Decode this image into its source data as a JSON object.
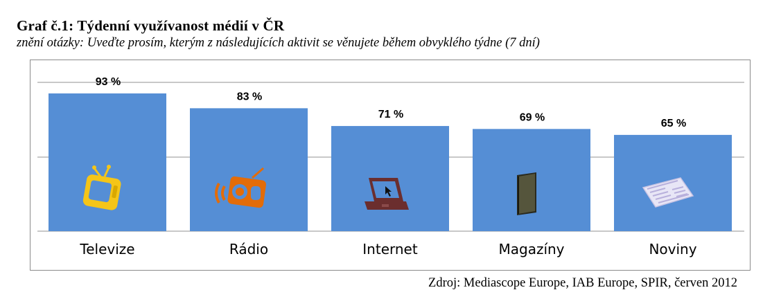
{
  "header": {
    "title": "Graf č.1: Týdenní využívanost médií v ČR",
    "subtitle": "znění otázky: Uveďte prosím, kterým z následujících aktivit se věnujete během obvyklého týdne (7 dní)"
  },
  "footer": {
    "source": "Zdroj: Mediascope Europe, IAB Europe, SPIR, červen 2012"
  },
  "chart_data": {
    "type": "bar",
    "title": "Graf č.1: Týdenní využívanost médií v ČR",
    "subtitle": "znění otázky: Uveďte prosím, kterým z následujících aktivit se věnujete během obvyklého týdne (7 dní)",
    "categories": [
      "Televize",
      "Rádio",
      "Internet",
      "Magazíny",
      "Noviny"
    ],
    "values": [
      93,
      83,
      71,
      69,
      65
    ],
    "data_labels": [
      "93 %",
      "83 %",
      "71 %",
      "69 %",
      "65 %"
    ],
    "icons": [
      "tv-icon",
      "radio-icon",
      "laptop-icon",
      "magazine-icon",
      "newspaper-icon"
    ],
    "bar_color": "#558ED5",
    "grid": true,
    "legend": "none",
    "xlabel": "",
    "ylabel": ""
  }
}
